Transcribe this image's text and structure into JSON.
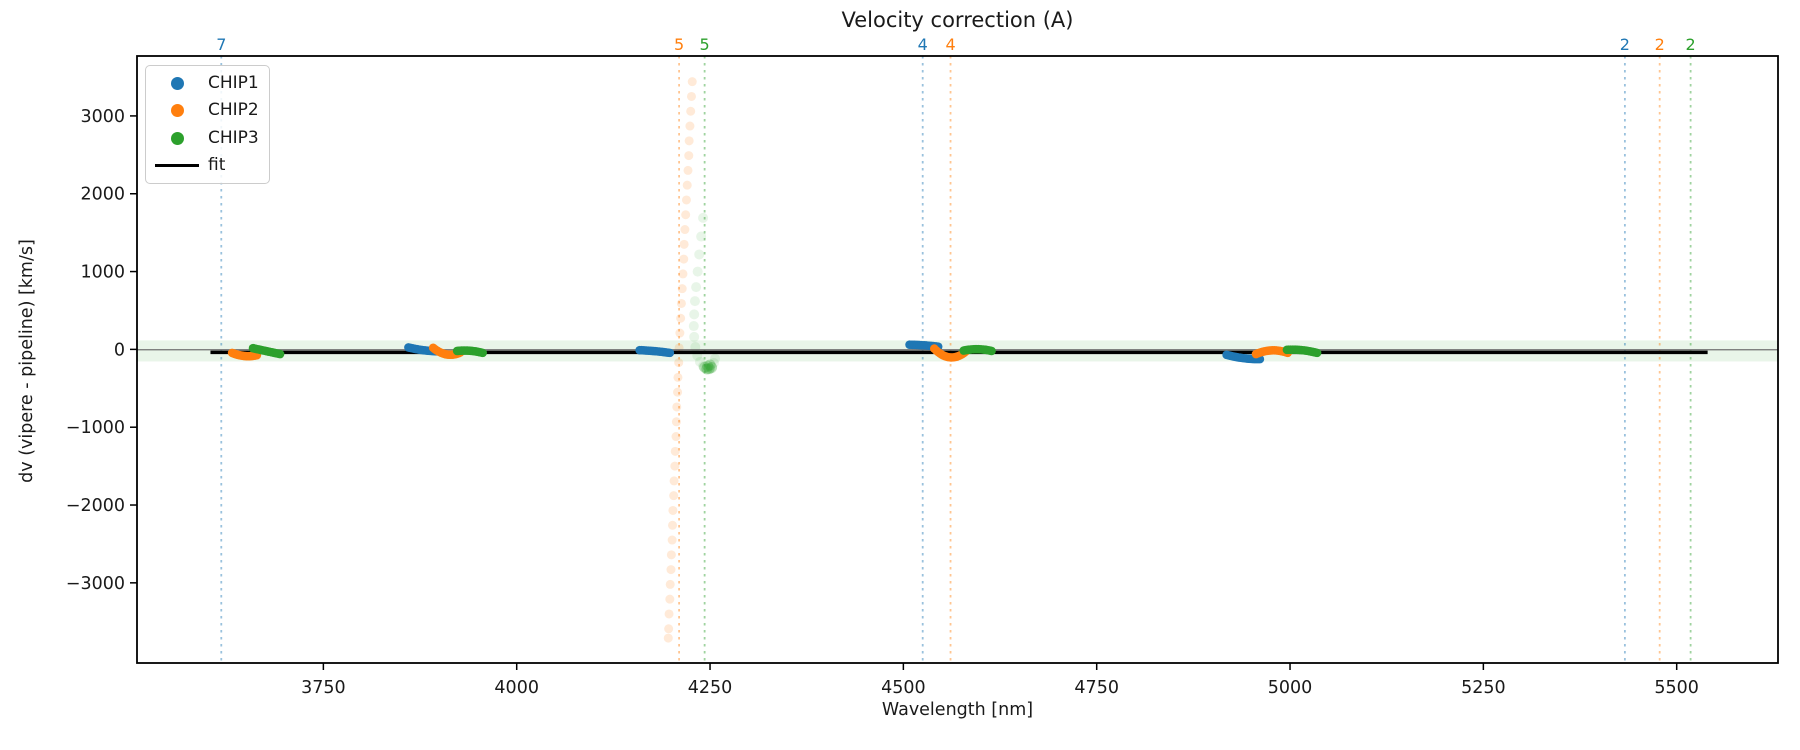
{
  "title": "Velocity correction (A)",
  "legend": {
    "items": [
      {
        "label": "CHIP1",
        "color": "#1f77b4",
        "marker": "dot"
      },
      {
        "label": "CHIP2",
        "color": "#ff7f0e",
        "marker": "dot"
      },
      {
        "label": "CHIP3",
        "color": "#2ca02c",
        "marker": "dot"
      },
      {
        "label": "fit",
        "color": "#000000",
        "marker": "line"
      }
    ]
  },
  "chart_data": {
    "type": "scatter",
    "title": "Velocity correction (A)",
    "xlabel": "Wavelength [nm]",
    "ylabel": "dv (vipere - pipeline) [km/s]",
    "xlim": [
      3509,
      5631
    ],
    "ylim": [
      -4030,
      3770
    ],
    "x_ticks": [
      3750,
      4000,
      4250,
      4500,
      4750,
      5000,
      5250,
      5500
    ],
    "y_ticks": [
      -3000,
      -2000,
      -1000,
      0,
      1000,
      2000,
      3000
    ],
    "grid": false,
    "legend_position": "upper left",
    "series": [
      {
        "name": "CHIP1",
        "color": "#1f77b4"
      },
      {
        "name": "CHIP2",
        "color": "#ff7f0e"
      },
      {
        "name": "CHIP3",
        "color": "#2ca02c"
      }
    ],
    "sigma_band": {
      "dv_top": 115,
      "dv_bottom": -155,
      "color": "rgba(44,160,44,0.10)"
    },
    "zero_line": {
      "dv": -5,
      "color": "#707070"
    },
    "fit_line": {
      "x_start": 3604,
      "x_end": 5540,
      "dv": -38,
      "color": "#000000"
    },
    "order_lines": [
      {
        "wavelength": 3618,
        "count": 7,
        "series": "CHIP1",
        "color": "#1f77b4"
      },
      {
        "wavelength": 4210,
        "count": 5,
        "series": "CHIP2",
        "color": "#ff7f0e"
      },
      {
        "wavelength": 4243,
        "count": 5,
        "series": "CHIP3",
        "color": "#2ca02c"
      },
      {
        "wavelength": 4525,
        "count": 4,
        "series": "CHIP1",
        "color": "#1f77b4"
      },
      {
        "wavelength": 4561,
        "count": 4,
        "series": "CHIP2",
        "color": "#ff7f0e"
      },
      {
        "wavelength": 5433,
        "count": 2,
        "series": "CHIP1",
        "color": "#1f77b4"
      },
      {
        "wavelength": 5478,
        "count": 2,
        "series": "CHIP2",
        "color": "#ff7f0e"
      },
      {
        "wavelength": 5518,
        "count": 2,
        "series": "CHIP3",
        "color": "#2ca02c"
      }
    ],
    "clusters": [
      {
        "series": "CHIP2",
        "color": "#ff7f0e",
        "wl": [
          3632,
          3664
        ],
        "dv": [
          -45,
          -75
        ],
        "sag": -25
      },
      {
        "series": "CHIP3",
        "color": "#2ca02c",
        "wl": [
          3659,
          3694
        ],
        "dv": [
          15,
          -60
        ],
        "sag": 0
      },
      {
        "series": "CHIP1",
        "color": "#1f77b4",
        "wl": [
          3860,
          3898
        ],
        "dv": [
          25,
          -25
        ],
        "sag": -10
      },
      {
        "series": "CHIP2",
        "color": "#ff7f0e",
        "wl": [
          3892,
          3927
        ],
        "dv": [
          20,
          -40
        ],
        "sag": -55
      },
      {
        "series": "CHIP3",
        "color": "#2ca02c",
        "wl": [
          3923,
          3956
        ],
        "dv": [
          -20,
          -45
        ],
        "sag": 15
      },
      {
        "series": "CHIP1",
        "color": "#1f77b4",
        "wl": [
          4159,
          4198
        ],
        "dv": [
          -10,
          -45
        ],
        "sag": 5
      },
      {
        "series": "CHIP1",
        "color": "#1f77b4",
        "wl": [
          4508,
          4545
        ],
        "dv": [
          60,
          35
        ],
        "sag": 5
      },
      {
        "series": "CHIP2",
        "color": "#ff7f0e",
        "wl": [
          4540,
          4581
        ],
        "dv": [
          10,
          -25
        ],
        "sag": -95
      },
      {
        "series": "CHIP3",
        "color": "#2ca02c",
        "wl": [
          4578,
          4614
        ],
        "dv": [
          -15,
          -20
        ],
        "sag": 20
      },
      {
        "series": "CHIP1",
        "color": "#1f77b4",
        "wl": [
          4918,
          4961
        ],
        "dv": [
          -70,
          -125
        ],
        "sag": -15
      },
      {
        "series": "CHIP2",
        "color": "#ff7f0e",
        "wl": [
          4956,
          4997
        ],
        "dv": [
          -60,
          -45
        ],
        "sag": 40
      },
      {
        "series": "CHIP3",
        "color": "#2ca02c",
        "wl": [
          4996,
          5035
        ],
        "dv": [
          -5,
          -45
        ],
        "sag": 15
      }
    ],
    "trails": [
      {
        "series": "CHIP2",
        "color": "#ff7f0e",
        "radius": 4.5,
        "opacity": 0.16,
        "points": [
          [
            4227,
            3440
          ],
          [
            4226,
            3250
          ],
          [
            4225,
            3060
          ],
          [
            4224,
            2870
          ],
          [
            4223,
            2680
          ],
          [
            4222.5,
            2490
          ],
          [
            4221.5,
            2300
          ],
          [
            4220.5,
            2110
          ],
          [
            4219.5,
            1920
          ],
          [
            4218.5,
            1730
          ],
          [
            4217.5,
            1540
          ],
          [
            4216.5,
            1350
          ],
          [
            4216,
            1160
          ],
          [
            4215,
            970
          ],
          [
            4214,
            780
          ],
          [
            4213,
            590
          ],
          [
            4212,
            400
          ],
          [
            4211,
            210
          ],
          [
            4210,
            20
          ],
          [
            4209.5,
            -170
          ],
          [
            4208.5,
            -360
          ],
          [
            4208,
            -550
          ],
          [
            4207,
            -740
          ],
          [
            4206.5,
            -930
          ],
          [
            4206,
            -1120
          ],
          [
            4205,
            -1310
          ],
          [
            4204.5,
            -1500
          ],
          [
            4203.5,
            -1690
          ],
          [
            4203,
            -1880
          ],
          [
            4202,
            -2070
          ],
          [
            4201.5,
            -2260
          ],
          [
            4201,
            -2450
          ],
          [
            4200,
            -2640
          ],
          [
            4199.5,
            -2830
          ],
          [
            4198.5,
            -3020
          ],
          [
            4198,
            -3210
          ],
          [
            4197,
            -3400
          ],
          [
            4196.5,
            -3590
          ],
          [
            4196,
            -3710
          ]
        ]
      },
      {
        "series": "CHIP3",
        "color": "#2ca02c",
        "radius": 5,
        "opacity": 0.11,
        "points": [
          [
            4241,
            1690
          ],
          [
            4238.5,
            1450
          ],
          [
            4236,
            1220
          ],
          [
            4234,
            1000
          ],
          [
            4232,
            800
          ],
          [
            4230.5,
            620
          ],
          [
            4229.5,
            450
          ],
          [
            4229,
            300
          ],
          [
            4229.5,
            160
          ],
          [
            4231,
            30
          ],
          [
            4233.5,
            -80
          ],
          [
            4237,
            -160
          ],
          [
            4241,
            -215
          ],
          [
            4245,
            -245
          ],
          [
            4249,
            -250
          ],
          [
            4252.5,
            -225
          ],
          [
            4255,
            -175
          ],
          [
            4256.5,
            -120
          ]
        ]
      },
      {
        "series": "CHIP3",
        "color": "#2ca02c",
        "radius": 5.5,
        "opacity": 0.28,
        "points": [
          [
            4243,
            -230
          ],
          [
            4246,
            -252
          ],
          [
            4249,
            -248
          ],
          [
            4252,
            -235
          ],
          [
            4247,
            -215
          ],
          [
            4250,
            -200
          ]
        ]
      }
    ]
  }
}
